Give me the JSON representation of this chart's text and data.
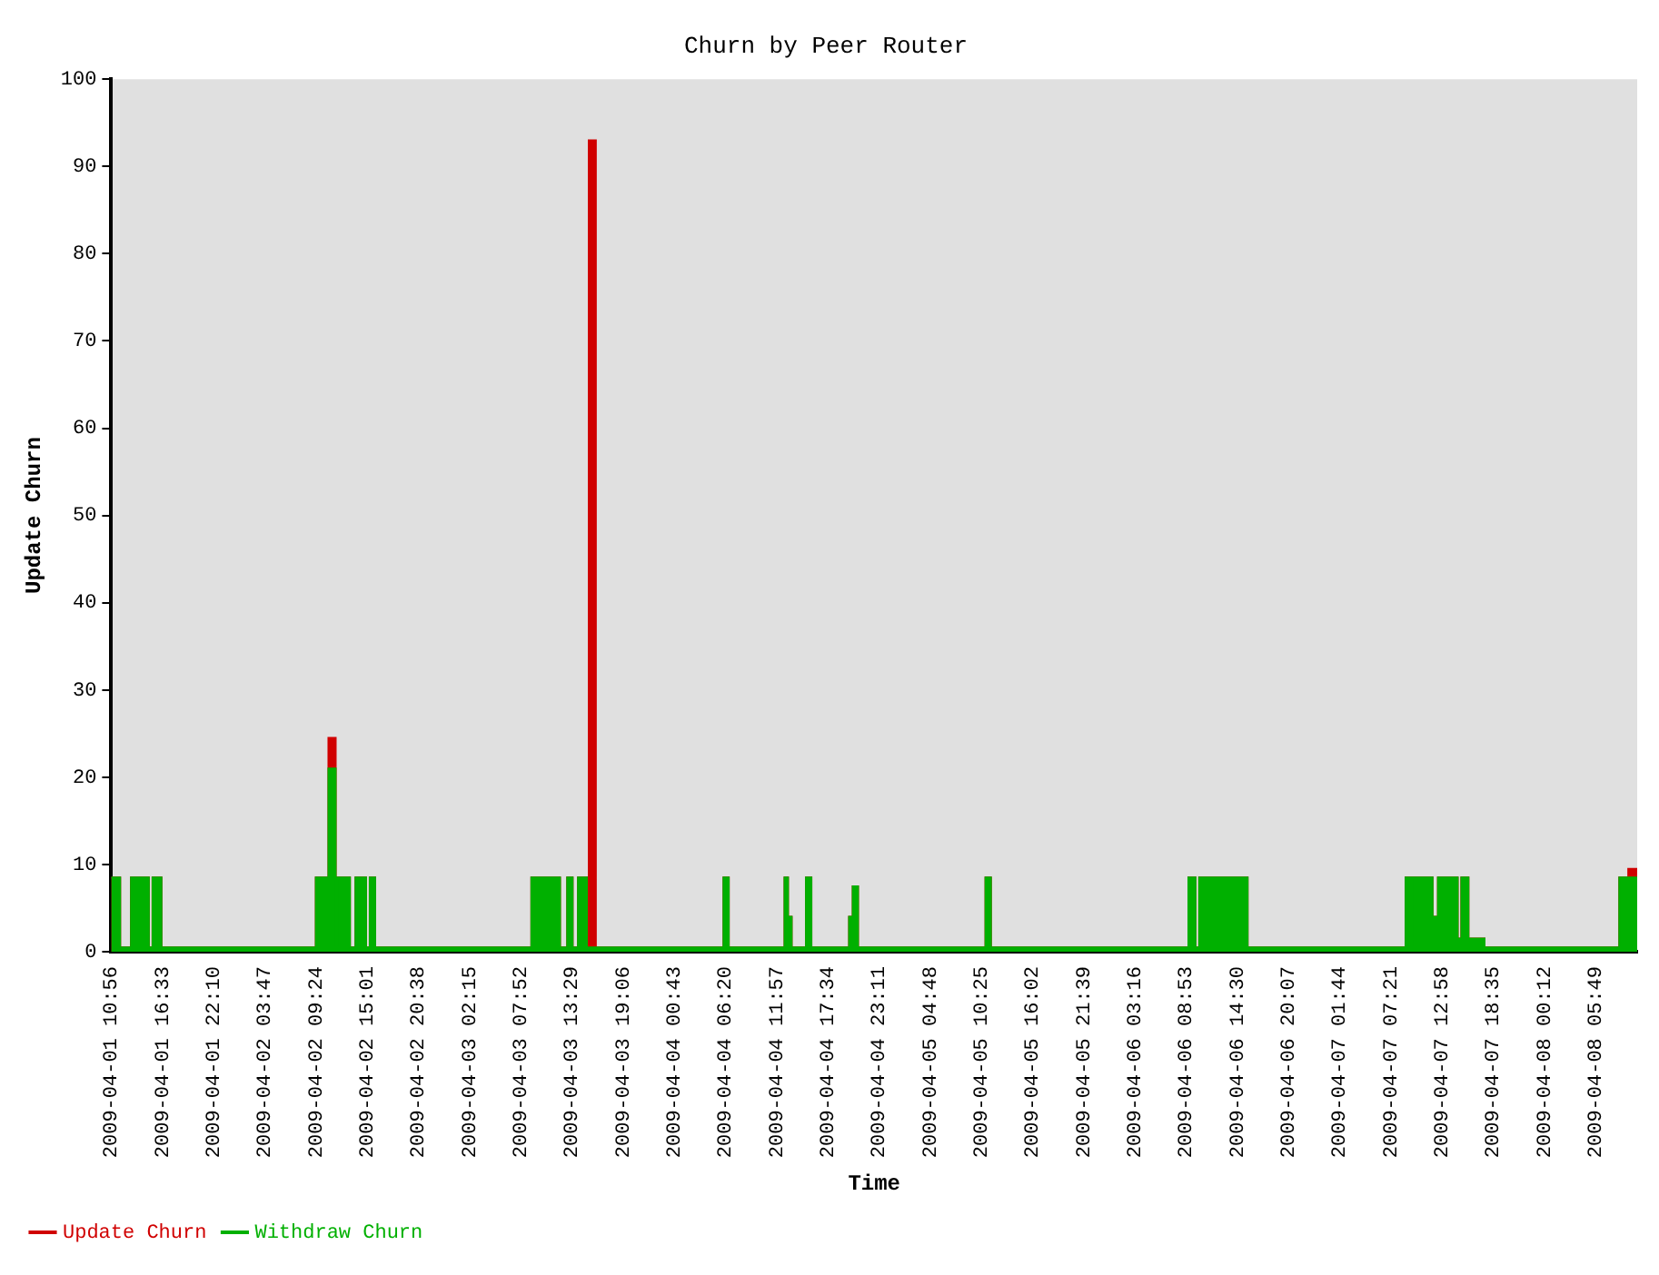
{
  "chart_data": {
    "type": "area",
    "title": "Churn by Peer Router",
    "xlabel": "Time",
    "ylabel": "Update Churn",
    "stacked": true,
    "legend": "bottom",
    "xlim": [
      "2009-04-01T10:56",
      "2009-04-08T10:23"
    ],
    "xticks": [
      {
        "value": "2009-04-01T10:56",
        "label": "2009-04-01 10:56"
      },
      {
        "value": "2009-04-01T16:33",
        "label": "2009-04-01 16:33"
      },
      {
        "value": "2009-04-01T22:10",
        "label": "2009-04-01 22:10"
      },
      {
        "value": "2009-04-02T03:47",
        "label": "2009-04-02 03:47"
      },
      {
        "value": "2009-04-02T09:24",
        "label": "2009-04-02 09:24"
      },
      {
        "value": "2009-04-02T15:01",
        "label": "2009-04-02 15:01"
      },
      {
        "value": "2009-04-02T20:38",
        "label": "2009-04-02 20:38"
      },
      {
        "value": "2009-04-03T02:15",
        "label": "2009-04-03 02:15"
      },
      {
        "value": "2009-04-03T07:52",
        "label": "2009-04-03 07:52"
      },
      {
        "value": "2009-04-03T13:29",
        "label": "2009-04-03 13:29"
      },
      {
        "value": "2009-04-03T19:06",
        "label": "2009-04-03 19:06"
      },
      {
        "value": "2009-04-04T00:43",
        "label": "2009-04-04 00:43"
      },
      {
        "value": "2009-04-04T06:20",
        "label": "2009-04-04 06:20"
      },
      {
        "value": "2009-04-04T11:57",
        "label": "2009-04-04 11:57"
      },
      {
        "value": "2009-04-04T17:34",
        "label": "2009-04-04 17:34"
      },
      {
        "value": "2009-04-04T23:11",
        "label": "2009-04-04 23:11"
      },
      {
        "value": "2009-04-05T04:48",
        "label": "2009-04-05 04:48"
      },
      {
        "value": "2009-04-05T10:25",
        "label": "2009-04-05 10:25"
      },
      {
        "value": "2009-04-05T16:02",
        "label": "2009-04-05 16:02"
      },
      {
        "value": "2009-04-05T21:39",
        "label": "2009-04-05 21:39"
      },
      {
        "value": "2009-04-06T03:16",
        "label": "2009-04-06 03:16"
      },
      {
        "value": "2009-04-06T08:53",
        "label": "2009-04-06 08:53"
      },
      {
        "value": "2009-04-06T14:30",
        "label": "2009-04-06 14:30"
      },
      {
        "value": "2009-04-06T20:07",
        "label": "2009-04-06 20:07"
      },
      {
        "value": "2009-04-07T01:44",
        "label": "2009-04-07 01:44"
      },
      {
        "value": "2009-04-07T07:21",
        "label": "2009-04-07 07:21"
      },
      {
        "value": "2009-04-07T12:58",
        "label": "2009-04-07 12:58"
      },
      {
        "value": "2009-04-07T18:35",
        "label": "2009-04-07 18:35"
      },
      {
        "value": "2009-04-08T00:12",
        "label": "2009-04-08 00:12"
      },
      {
        "value": "2009-04-08T05:49",
        "label": "2009-04-08 05:49"
      }
    ],
    "ylim": [
      0,
      100
    ],
    "yticks": [
      0,
      10,
      20,
      30,
      40,
      50,
      60,
      70,
      80,
      90,
      100
    ],
    "x": [
      "2009-04-01T10:56",
      "2009-04-01T11:55",
      "2009-04-01T11:55",
      "2009-04-01T13:06",
      "2009-04-01T13:06",
      "2009-04-01T15:04",
      "2009-04-01T15:04",
      "2009-04-01T15:28",
      "2009-04-01T15:28",
      "2009-04-01T16:27",
      "2009-04-01T16:27",
      "2009-04-02T09:23",
      "2009-04-02T09:23",
      "2009-04-02T10:46",
      "2009-04-02T10:46",
      "2009-04-02T11:34",
      "2009-04-02T11:34",
      "2009-04-02T11:45",
      "2009-04-02T11:45",
      "2009-04-02T13:08",
      "2009-04-02T13:08",
      "2009-04-02T13:44",
      "2009-04-02T13:44",
      "2009-04-02T14:54",
      "2009-04-02T14:54",
      "2009-04-02T15:18",
      "2009-04-02T15:18",
      "2009-04-02T15:54",
      "2009-04-02T15:54",
      "2009-04-03T09:02",
      "2009-04-03T09:02",
      "2009-04-03T12:11",
      "2009-04-03T12:11",
      "2009-04-03T12:58",
      "2009-04-03T12:58",
      "2009-04-03T13:34",
      "2009-04-03T13:34",
      "2009-04-03T14:09",
      "2009-04-03T14:09",
      "2009-04-03T15:08",
      "2009-04-03T15:08",
      "2009-04-03T15:20",
      "2009-04-03T15:20",
      "2009-04-03T16:07",
      "2009-04-03T16:07",
      "2009-04-04T06:07",
      "2009-04-04T06:07",
      "2009-04-04T06:42",
      "2009-04-04T06:42",
      "2009-04-04T12:49",
      "2009-04-04T12:49",
      "2009-04-04T13:12",
      "2009-04-04T13:12",
      "2009-04-04T13:36",
      "2009-04-04T13:36",
      "2009-04-04T15:10",
      "2009-04-04T15:10",
      "2009-04-04T15:46",
      "2009-04-04T15:46",
      "2009-04-04T19:54",
      "2009-04-04T19:54",
      "2009-04-04T20:18",
      "2009-04-04T20:18",
      "2009-04-04T20:53",
      "2009-04-04T20:53",
      "2009-04-05T10:52",
      "2009-04-05T10:52",
      "2009-04-05T11:28",
      "2009-04-05T11:28",
      "2009-04-06T09:08",
      "2009-04-06T09:08",
      "2009-04-06T09:55",
      "2009-04-06T09:55",
      "2009-04-06T10:19",
      "2009-04-06T10:19",
      "2009-04-06T15:38",
      "2009-04-06T15:38",
      "2009-04-07T08:58",
      "2009-04-07T08:58",
      "2009-04-07T09:57",
      "2009-04-07T09:57",
      "2009-04-07T10:09",
      "2009-04-07T10:09",
      "2009-04-07T11:56",
      "2009-04-07T11:56",
      "2009-04-07T12:31",
      "2009-04-07T12:31",
      "2009-04-07T14:41",
      "2009-04-07T14:41",
      "2009-04-07T15:05",
      "2009-04-07T15:05",
      "2009-04-07T15:52",
      "2009-04-07T15:52",
      "2009-04-07T17:38",
      "2009-04-07T17:38",
      "2009-04-08T08:25",
      "2009-04-08T08:25",
      "2009-04-08T09:24",
      "2009-04-08T09:24",
      "2009-04-08T10:23"
    ],
    "series": [
      {
        "name": "Withdraw Churn",
        "color": "#00b000",
        "values": [
          8.5,
          8.5,
          0.5,
          0.5,
          8.5,
          8.5,
          0.5,
          0.5,
          8.5,
          8.5,
          0.5,
          0.5,
          8.5,
          8.5,
          21,
          21,
          0.5,
          0.5,
          8.5,
          8.5,
          0.5,
          0.5,
          8.5,
          8.5,
          0.5,
          0.5,
          8.5,
          8.5,
          0.5,
          0.5,
          8.5,
          8.5,
          0.5,
          0.5,
          8.5,
          8.5,
          0.5,
          0.5,
          8.5,
          8.5,
          0.5,
          0.5,
          0.5,
          0.5,
          0.5,
          0.5,
          8.5,
          8.5,
          0.5,
          0.5,
          8.5,
          8.5,
          4,
          4,
          0.5,
          0.5,
          8.5,
          8.5,
          0.5,
          0.5,
          4,
          4,
          7.5,
          7.5,
          0.5,
          0.5,
          8.5,
          8.5,
          0.5,
          0.5,
          8.5,
          8.5,
          0.5,
          0.5,
          8.5,
          8.5,
          0.5,
          0.5,
          8.5,
          8.5,
          0.5,
          0.5,
          8.5,
          8.5,
          4,
          4,
          8.5,
          8.5,
          1.5,
          1.5,
          8.5,
          8.5,
          1.5,
          1.5,
          0.5,
          0.5,
          8.5,
          8.5,
          8.5,
          8.5
        ]
      },
      {
        "name": "Update Churn",
        "color": "#d00000",
        "values": [
          0,
          0,
          0,
          0,
          0,
          0,
          0,
          0,
          0,
          0,
          0,
          0,
          0,
          0,
          3.5,
          3.5,
          0,
          0,
          0,
          0,
          0,
          0,
          0,
          0,
          0,
          0,
          0,
          0,
          0,
          0,
          0,
          0,
          0,
          0,
          0,
          0,
          0,
          0,
          0,
          0,
          0,
          0,
          92.5,
          92.5,
          0,
          0,
          0,
          0,
          0,
          0,
          0,
          0,
          0,
          0,
          0,
          0,
          0,
          0,
          0,
          0,
          0,
          0,
          0,
          0,
          0,
          0,
          0,
          0,
          0,
          0,
          0,
          0,
          0,
          0,
          0,
          0,
          0,
          0,
          0,
          0,
          0,
          0,
          0,
          0,
          0,
          0,
          0,
          0,
          0,
          0,
          0,
          0,
          0,
          0,
          0,
          0,
          0,
          0,
          1,
          1
        ]
      }
    ]
  }
}
